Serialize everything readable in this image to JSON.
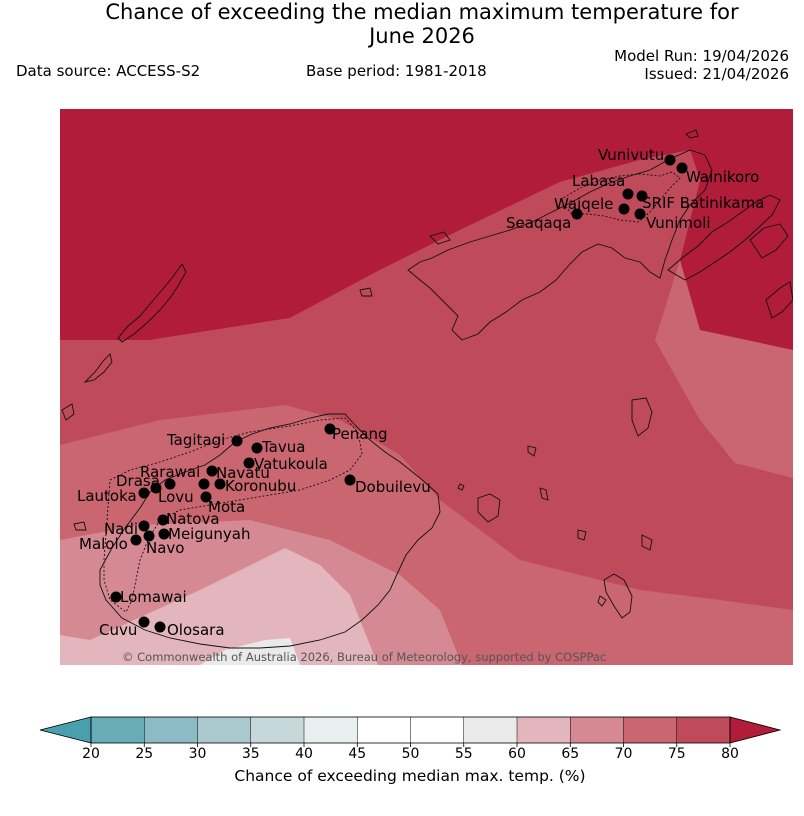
{
  "header": {
    "title_line1": "Chance of exceeding the median maximum temperature for",
    "title_line2": "June 2026",
    "data_source": "Data source: ACCESS-S2",
    "base_period": "Base period: 1981-2018",
    "model_run": "Model Run: 19/04/2026",
    "issued": "Issued: 21/04/2026"
  },
  "map": {
    "copyright": "© Commonwealth of Australia 2026, Bureau of Meteorology, supported by COSPPac",
    "locations": [
      {
        "name": "Vunivutu"
      },
      {
        "name": "Wainikoro"
      },
      {
        "name": "Labasa"
      },
      {
        "name": "SRIF Batinikama"
      },
      {
        "name": "Waiqele"
      },
      {
        "name": "Vunimoli"
      },
      {
        "name": "Seaqaqa"
      },
      {
        "name": "Penang"
      },
      {
        "name": "Tagitagi"
      },
      {
        "name": "Tavua"
      },
      {
        "name": "Vatukoula"
      },
      {
        "name": "Rarawai"
      },
      {
        "name": "Navatu"
      },
      {
        "name": "Drasa"
      },
      {
        "name": "Koronubu"
      },
      {
        "name": "Lautoka"
      },
      {
        "name": "Lovu"
      },
      {
        "name": "Mota"
      },
      {
        "name": "Dobuilevu"
      },
      {
        "name": "Natova"
      },
      {
        "name": "Nadi"
      },
      {
        "name": "Meigunyah"
      },
      {
        "name": "Malolo"
      },
      {
        "name": "Navo"
      },
      {
        "name": "Lomawai"
      },
      {
        "name": "Cuvu"
      },
      {
        "name": "Olosara"
      }
    ]
  },
  "colorbar": {
    "label": "Chance of exceeding median max. temp. (%)",
    "ticks": [
      "20",
      "25",
      "30",
      "35",
      "40",
      "45",
      "50",
      "55",
      "60",
      "65",
      "70",
      "75",
      "80"
    ],
    "colors": {
      "under": "#4a9fae",
      "bins": [
        "#6aabb8",
        "#8bbbc4",
        "#aac9ce",
        "#c6d8da",
        "#e9eff1",
        "#ffffff",
        "#ffffff",
        "#eaeaea",
        "#e2b6bc",
        "#d48993",
        "#c96670",
        "#bf4b5a"
      ],
      "over": "#b01c39"
    }
  }
}
